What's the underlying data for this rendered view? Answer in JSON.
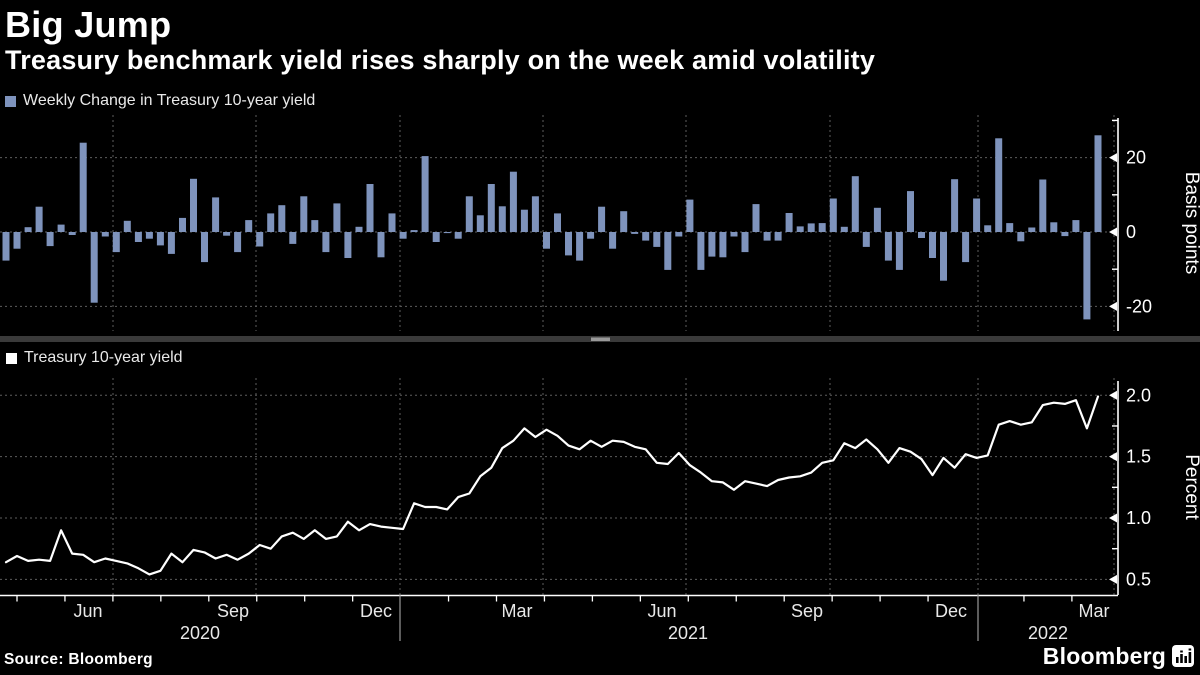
{
  "header": {
    "title": "Big Jump",
    "subtitle": "Treasury benchmark yield rises sharply on the week amid volatility"
  },
  "footer": {
    "source": "Source: Bloomberg",
    "brand": "Bloomberg"
  },
  "colors": {
    "background": "#000000",
    "bar": "#7E93BC",
    "line": "#FFFFFF",
    "grid": "#5E5E5E",
    "axis": "#FFFFFF",
    "tick_text": "#FFFFFF",
    "month_text": "#E8E8E8",
    "separator": "#3A3A3A",
    "separator_handle": "#999999",
    "legend_text": "#E9E9E9"
  },
  "chart_data": [
    {
      "type": "bar",
      "title": "Weekly Change in Treasury 10-year yield",
      "ylabel": "Basis points",
      "x_range": "May 2020 - Mar 2022",
      "frequency": "weekly",
      "grid": true,
      "legend_position": "top-left",
      "ylim": [
        -31,
        31
      ],
      "yticks": [
        {
          "label": "20",
          "value": 20
        },
        {
          "label": "0",
          "value": 0
        },
        {
          "label": "-20",
          "value": -20
        }
      ],
      "minor_yticks": [
        30,
        10,
        -10
      ],
      "values": [
        -7.7,
        -4.5,
        1.3,
        6.8,
        -3.8,
        2.0,
        -0.8,
        24.0,
        -19.0,
        -1.2,
        -5.4,
        3.0,
        -2.7,
        -1.8,
        -3.6,
        -5.9,
        3.8,
        14.3,
        -8.1,
        9.3,
        -1.0,
        -5.4,
        3.2,
        -3.9,
        5.0,
        7.2,
        -3.2,
        9.6,
        3.2,
        -5.4,
        7.7,
        -7.0,
        1.4,
        12.9,
        -6.8,
        5.0,
        -1.8,
        0.5,
        20.4,
        -2.7,
        -0.3,
        -1.8,
        9.6,
        4.5,
        12.9,
        6.9,
        16.2,
        6.0,
        9.6,
        -4.5,
        5.0,
        -6.3,
        -7.7,
        -1.8,
        6.8,
        -4.5,
        5.6,
        -0.5,
        -2.3,
        -4.0,
        -10.2,
        -1.2,
        8.7,
        -10.2,
        -6.6,
        -6.8,
        -1.2,
        -5.4,
        7.5,
        -2.3,
        -2.3,
        5.1,
        1.5,
        2.3,
        2.4,
        9.0,
        1.4,
        15.0,
        -4.0,
        6.5,
        -7.7,
        -10.2,
        11.0,
        -1.6,
        -7.0,
        -13.1,
        14.2,
        -8.1,
        9.0,
        1.8,
        25.2,
        2.4,
        -2.5,
        1.2,
        14.1,
        2.6,
        -1.1,
        3.2,
        -23.5,
        26.0
      ]
    },
    {
      "type": "line",
      "title": "Treasury 10-year yield",
      "ylabel": "Percent",
      "x_range": "May 2020 - Mar 2022",
      "frequency": "weekly",
      "grid": true,
      "legend_position": "top-left",
      "ylim": [
        0.3,
        2.1
      ],
      "yticks": [
        {
          "label": "2.0",
          "value": 2.0
        },
        {
          "label": "1.5",
          "value": 1.5
        },
        {
          "label": "1.0",
          "value": 1.0
        },
        {
          "label": "0.5",
          "value": 0.5
        }
      ],
      "minor_yticks": [
        1.75,
        1.25,
        0.75
      ],
      "x_tick_labels": [
        "Jun",
        "Sep",
        "Dec",
        "Mar",
        "Jun",
        "Sep",
        "Dec",
        "Mar"
      ],
      "year_labels": [
        "2020",
        "2021",
        "2022"
      ],
      "values": [
        0.64,
        0.69,
        0.65,
        0.66,
        0.65,
        0.9,
        0.71,
        0.7,
        0.64,
        0.67,
        0.65,
        0.63,
        0.59,
        0.54,
        0.57,
        0.71,
        0.64,
        0.74,
        0.72,
        0.67,
        0.7,
        0.66,
        0.71,
        0.78,
        0.75,
        0.85,
        0.88,
        0.83,
        0.9,
        0.83,
        0.85,
        0.97,
        0.9,
        0.95,
        0.93,
        0.92,
        0.91,
        1.12,
        1.09,
        1.09,
        1.07,
        1.17,
        1.2,
        1.34,
        1.41,
        1.57,
        1.63,
        1.73,
        1.66,
        1.72,
        1.67,
        1.59,
        1.56,
        1.63,
        1.58,
        1.63,
        1.62,
        1.58,
        1.56,
        1.45,
        1.44,
        1.53,
        1.43,
        1.37,
        1.3,
        1.29,
        1.23,
        1.3,
        1.28,
        1.26,
        1.31,
        1.33,
        1.34,
        1.37,
        1.45,
        1.47,
        1.61,
        1.57,
        1.64,
        1.56,
        1.45,
        1.57,
        1.54,
        1.48,
        1.35,
        1.49,
        1.41,
        1.52,
        1.49,
        1.51,
        1.76,
        1.79,
        1.76,
        1.78,
        1.92,
        1.94,
        1.93,
        1.96,
        1.73,
        1.99
      ]
    }
  ]
}
